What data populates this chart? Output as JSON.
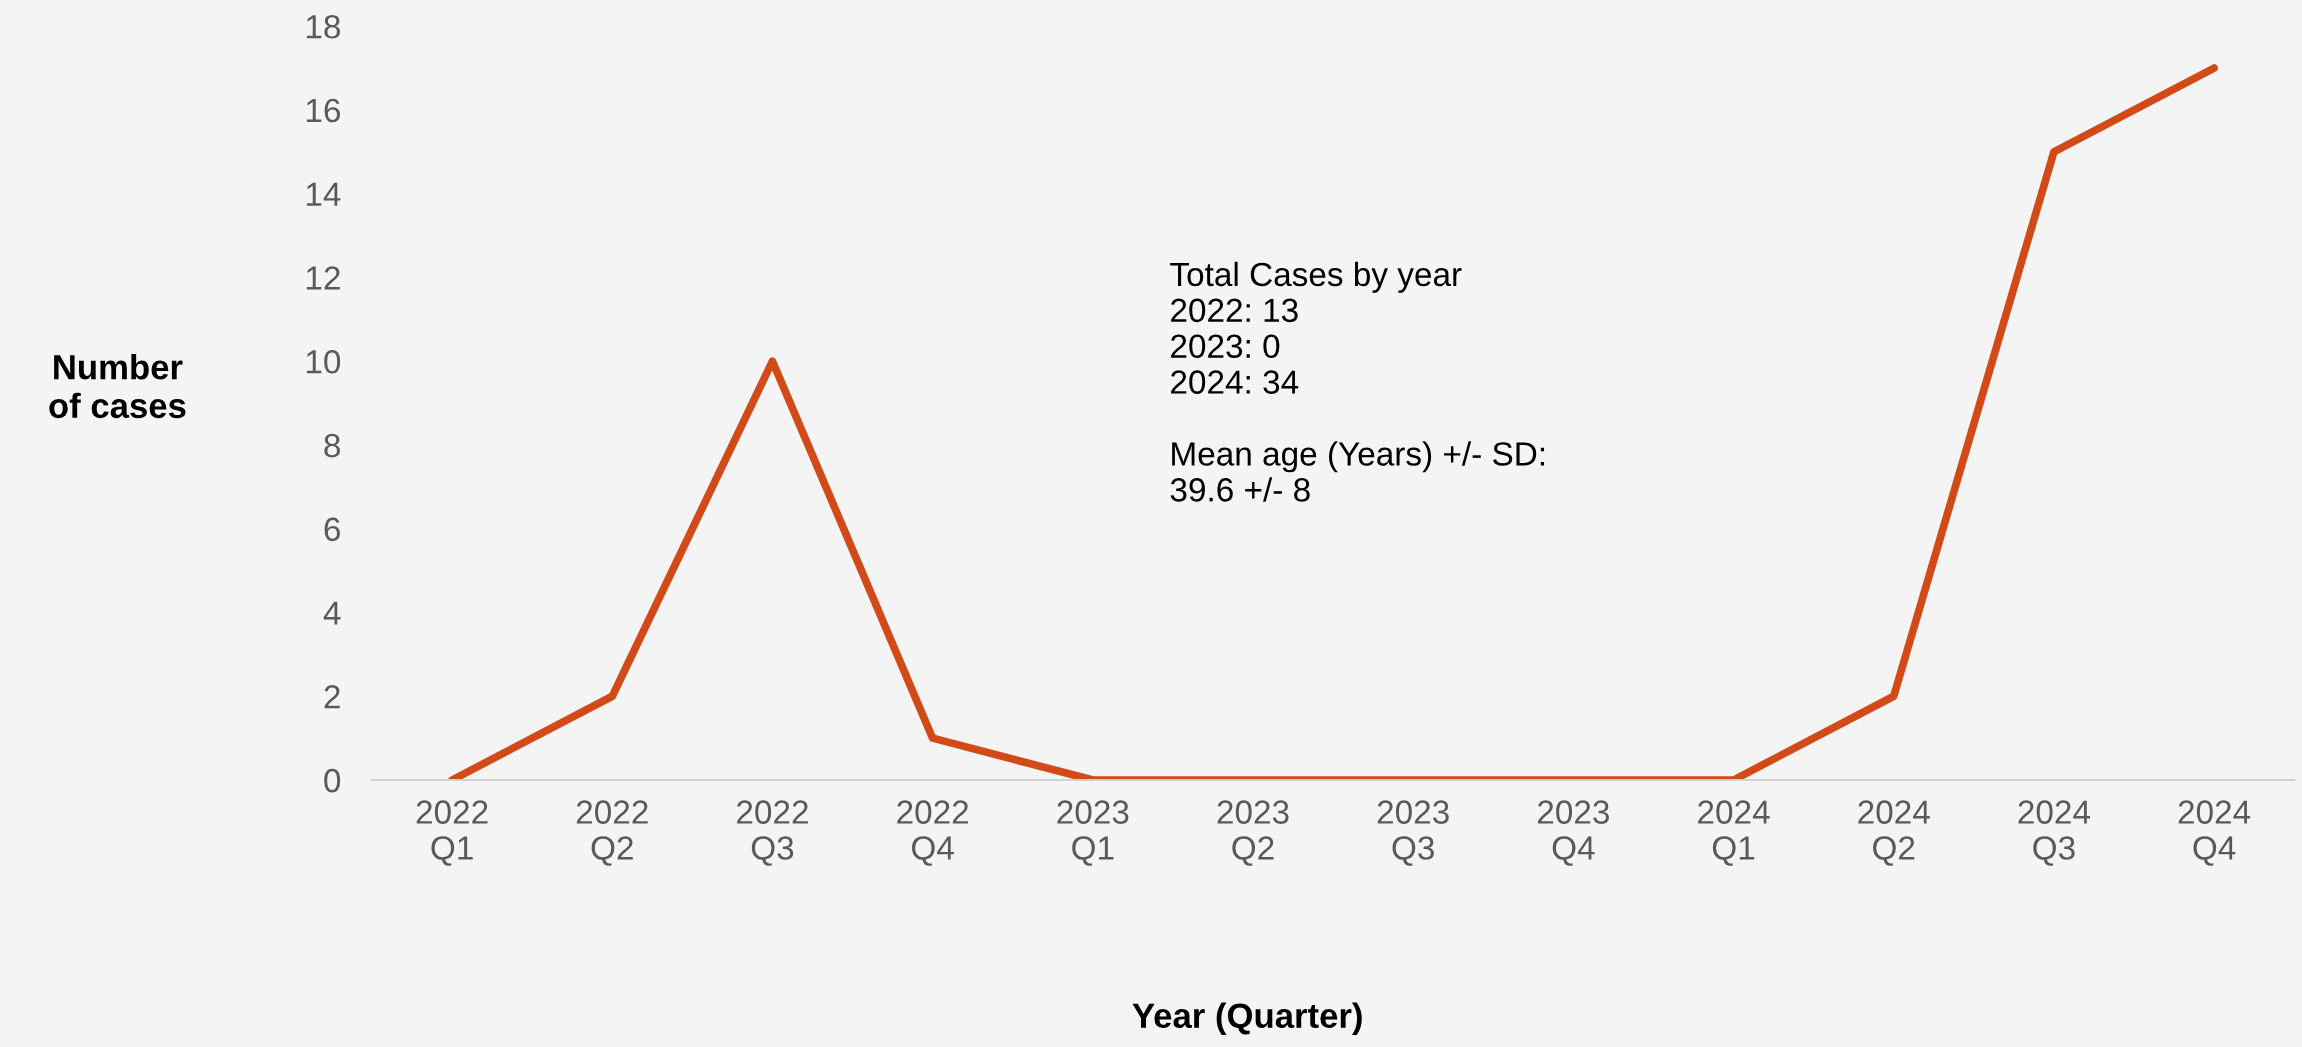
{
  "chart_data": {
    "type": "line",
    "xlabel": "Year (Quarter)",
    "ylabel": "Number\nof cases",
    "categories": [
      "2022\nQ1",
      "2022\nQ2",
      "2022\nQ3",
      "2022\nQ4",
      "2023\nQ1",
      "2023\nQ2",
      "2023\nQ3",
      "2023\nQ4",
      "2024\nQ1",
      "2024\nQ2",
      "2024\nQ3",
      "2024\nQ4"
    ],
    "series": [
      {
        "color": "#d24a17",
        "values": [
          0,
          2,
          10,
          1,
          0,
          0,
          0,
          0,
          0,
          2,
          15,
          17
        ]
      }
    ],
    "ylim": [
      0,
      18
    ],
    "yticks": [
      0,
      2,
      4,
      6,
      8,
      10,
      12,
      14,
      16,
      18
    ],
    "annotations": [
      "Total Cases by year\n2022: 13\n2023: 0\n2024: 34\n\nMean age (Years) +/- SD:\n39.6 +/- 8"
    ],
    "grid": false,
    "legend": false,
    "marker": "none",
    "line_style": "solid"
  }
}
